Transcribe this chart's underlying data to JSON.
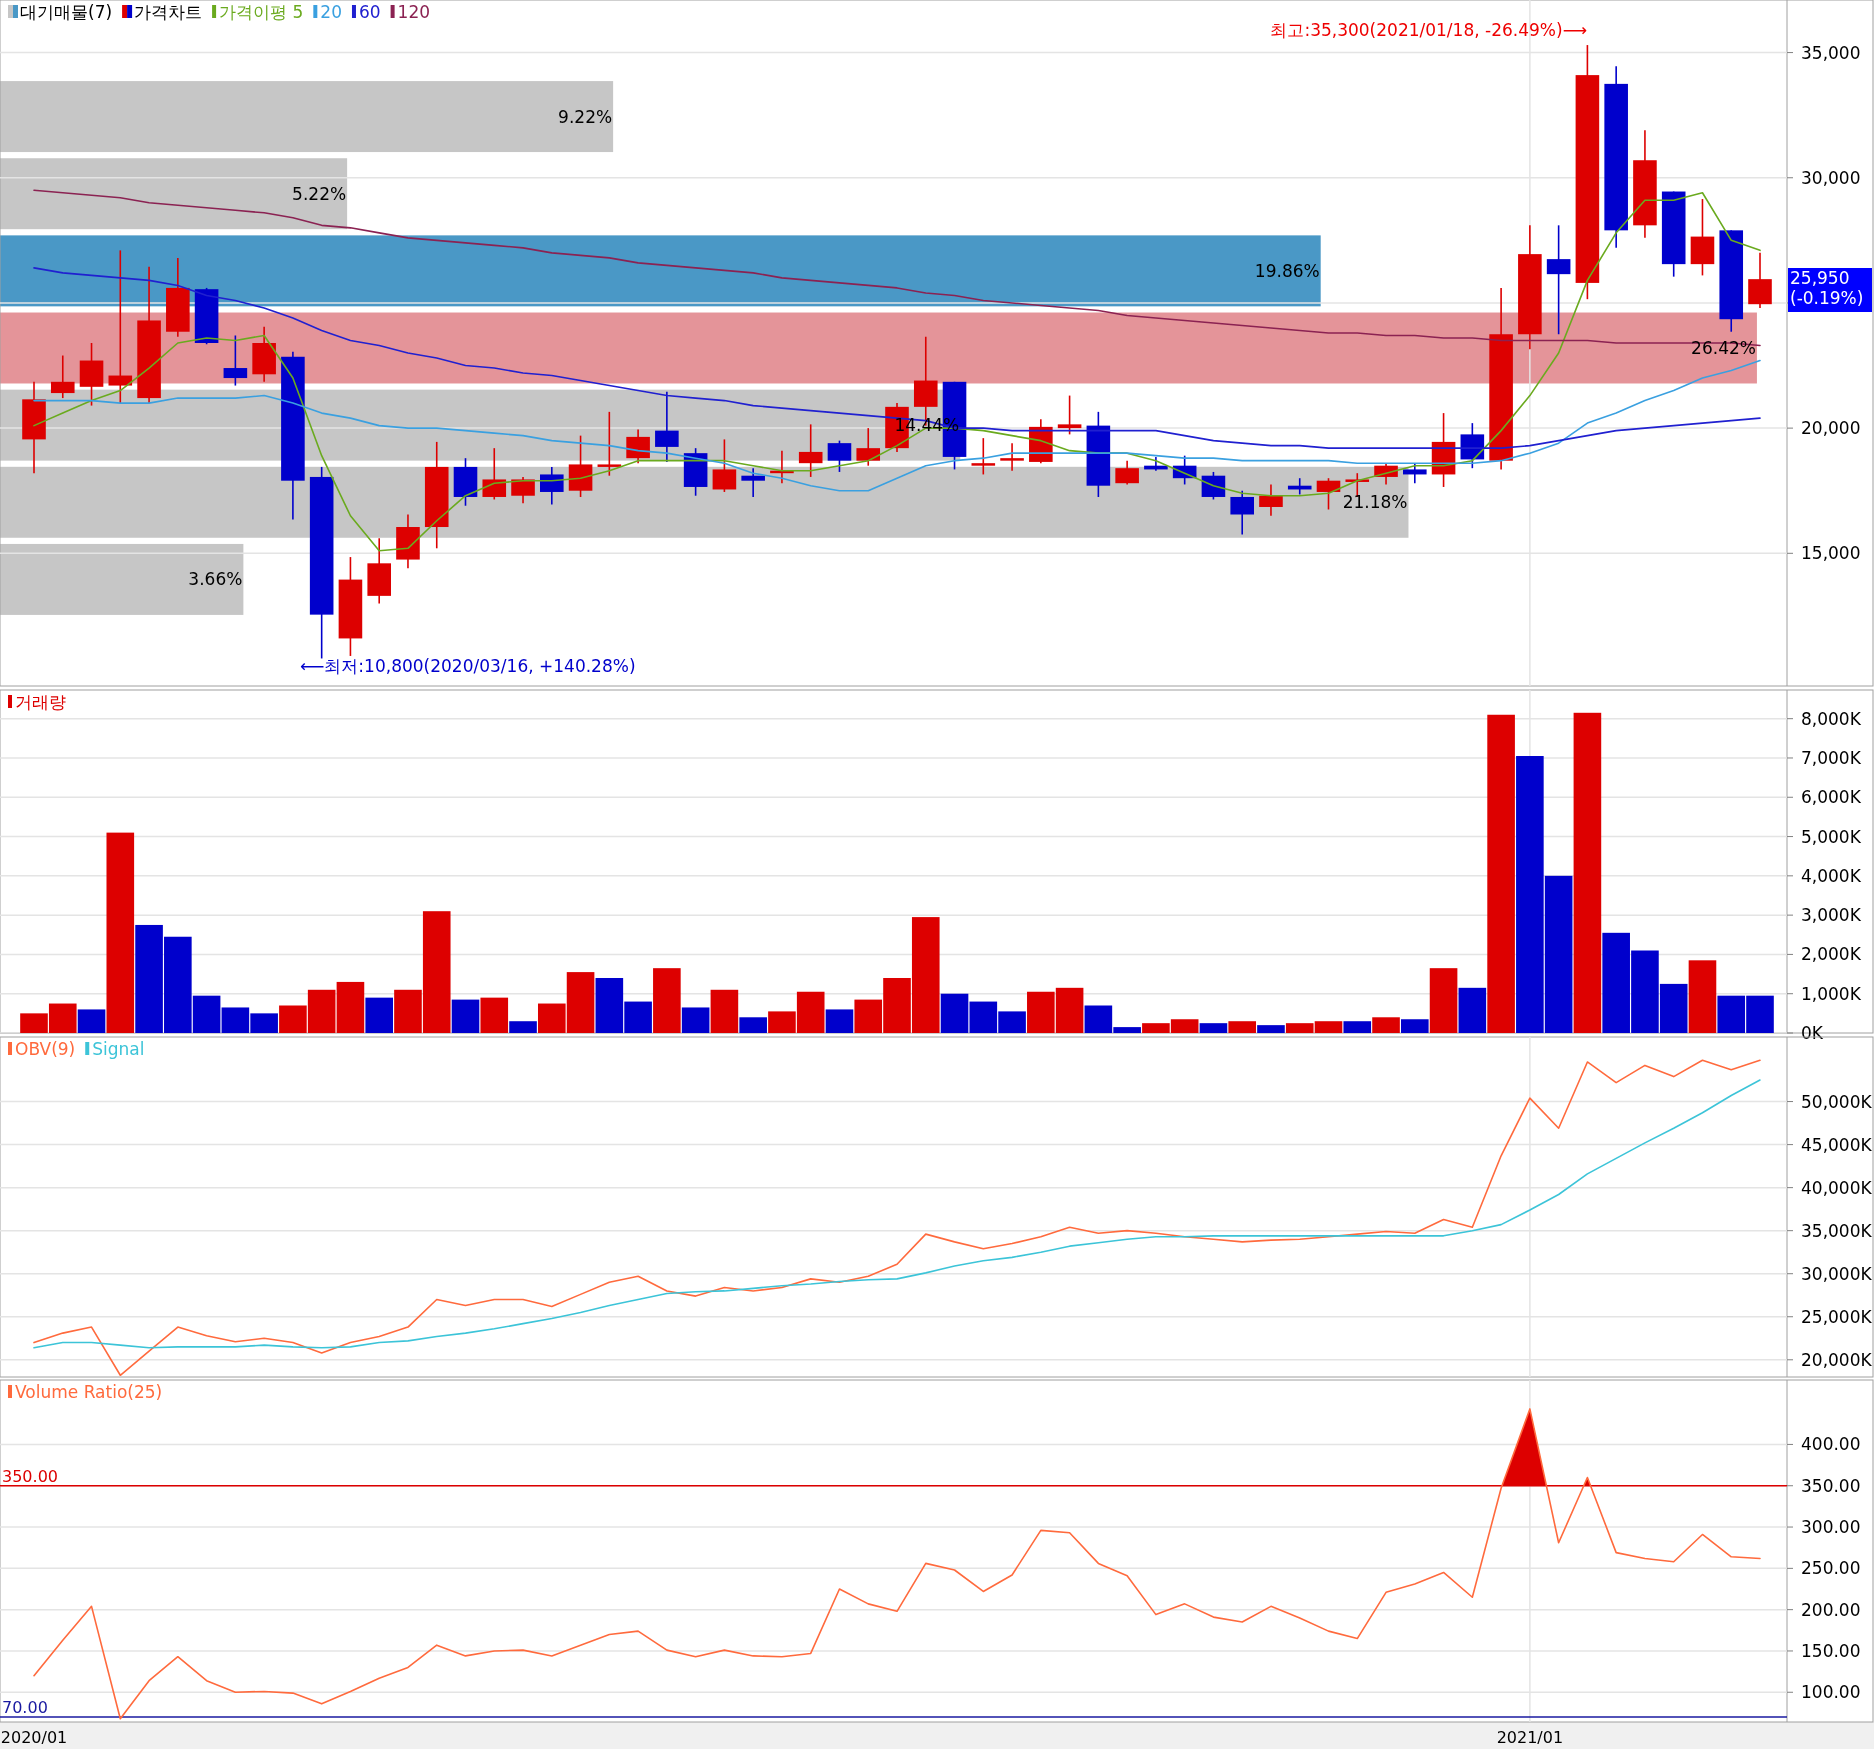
{
  "chart_data": [
    {
      "type": "bar",
      "orientation": "horizontal",
      "legend": "top left",
      "tick_labels": false,
      "categories": [
        null,
        null,
        null,
        null,
        null,
        null,
        null
      ],
      "series": [
        {
          "name": "대기매물(7)",
          "values": [
            9.22,
            5.22,
            19.86,
            26.42,
            14.44,
            21.18,
            3.66
          ],
          "value_labels": [
            "9.22%",
            "5.22%",
            "19.86%",
            "26.42%",
            "14.44%",
            "21.18%",
            "3.66%"
          ],
          "colors": [
            "#c6c6c6",
            "#c6c6c6",
            "#4a98c6",
            "#e49499",
            "#c6c6c6",
            "#c6c6c6",
            "#c6c6c6"
          ]
        }
      ]
    },
    {
      "type": "candlestick",
      "legend": "top left",
      "grid": true,
      "tick_labels": "y",
      "categories": [
        "2020/01",
        null,
        null,
        null,
        null,
        null,
        null,
        null,
        null,
        null,
        null,
        null,
        null,
        null,
        null,
        null,
        null,
        null,
        null,
        null,
        null,
        null,
        null,
        null,
        null,
        null,
        null,
        null,
        null,
        null,
        null,
        null,
        null,
        null,
        null,
        null,
        null,
        null,
        null,
        null,
        null,
        null,
        null,
        null,
        null,
        null,
        null,
        null,
        null,
        null,
        null,
        null,
        "2021/01",
        null,
        null,
        null,
        null,
        null,
        null,
        null,
        null
      ],
      "ylim": [
        9700,
        37100
      ],
      "yticks": [
        {
          "value": 15000,
          "label": "15,000"
        },
        {
          "value": 20000,
          "label": "20,000"
        },
        {
          "value": 25000,
          "label": null
        },
        {
          "value": 30000,
          "label": "30,000"
        },
        {
          "value": 35000,
          "label": "35,000"
        }
      ],
      "series": [
        {
          "name": "가격차트",
          "ohlc": [
            [
              19550,
              21850,
              18200,
              21150
            ],
            [
              21400,
              22900,
              21200,
              21850
            ],
            [
              21650,
              23400,
              20900,
              22700
            ],
            [
              21700,
              27100,
              21000,
              22100
            ],
            [
              21200,
              26450,
              21000,
              24300
            ],
            [
              23850,
              26800,
              23650,
              25600
            ],
            [
              25550,
              25600,
              23350,
              23400
            ],
            [
              22400,
              23700,
              21700,
              22000
            ],
            [
              22150,
              24050,
              21850,
              23400
            ],
            [
              22850,
              23050,
              16350,
              17900
            ],
            [
              18050,
              18450,
              10800,
              12550
            ],
            [
              11600,
              14850,
              10900,
              13950
            ],
            [
              13300,
              15600,
              13000,
              14600
            ],
            [
              14750,
              16550,
              14400,
              16050
            ],
            [
              16050,
              19450,
              15200,
              18450
            ],
            [
              18450,
              18800,
              16900,
              17250
            ],
            [
              17250,
              19200,
              17150,
              17950
            ],
            [
              17300,
              18050,
              17000,
              17950
            ],
            [
              18150,
              18450,
              16950,
              17450
            ],
            [
              17500,
              19700,
              17250,
              18550
            ],
            [
              18450,
              20650,
              18100,
              18550
            ],
            [
              18800,
              19950,
              18600,
              19650
            ],
            [
              19900,
              21450,
              18650,
              19250
            ],
            [
              19000,
              19200,
              17300,
              17650
            ],
            [
              17550,
              19550,
              17450,
              18350
            ],
            [
              18100,
              18400,
              17250,
              17900
            ],
            [
              18200,
              19100,
              17800,
              18300
            ],
            [
              18600,
              20150,
              18050,
              19050
            ],
            [
              19400,
              19500,
              18250,
              18700
            ],
            [
              18700,
              20000,
              18500,
              19200
            ],
            [
              19200,
              21000,
              19050,
              20850
            ],
            [
              20850,
              23650,
              20100,
              21900
            ],
            [
              21850,
              21850,
              18350,
              18850
            ],
            [
              18500,
              19600,
              18150,
              18600
            ],
            [
              18700,
              19400,
              18300,
              18800
            ],
            [
              18650,
              20350,
              18600,
              20050
            ],
            [
              20000,
              21300,
              19750,
              20150
            ],
            [
              20100,
              20650,
              17250,
              17700
            ],
            [
              17800,
              18700,
              17750,
              18400
            ],
            [
              18500,
              18850,
              18300,
              18350
            ],
            [
              18500,
              18900,
              17750,
              18000
            ],
            [
              18100,
              18250,
              17150,
              17250
            ],
            [
              17250,
              17500,
              15750,
              16550
            ],
            [
              16850,
              17750,
              16500,
              17300
            ],
            [
              17700,
              18000,
              17350,
              17550
            ],
            [
              17450,
              18000,
              16750,
              17900
            ],
            [
              17850,
              18200,
              17250,
              17950
            ],
            [
              18050,
              18600,
              17750,
              18500
            ],
            [
              18350,
              18600,
              17800,
              18150
            ],
            [
              18150,
              20600,
              17650,
              19450
            ],
            [
              19750,
              20200,
              18400,
              18750
            ],
            [
              18700,
              25600,
              18350,
              23750
            ],
            [
              23750,
              28100,
              23150,
              26950
            ],
            [
              26750,
              28100,
              23750,
              26150
            ],
            [
              25800,
              35300,
              25150,
              34100
            ],
            [
              33750,
              34450,
              27200,
              27900
            ],
            [
              28100,
              31900,
              27600,
              30700
            ],
            [
              29450,
              29450,
              26050,
              26550
            ],
            [
              26550,
              29150,
              26100,
              27650
            ],
            [
              27900,
              27900,
              23850,
              24350
            ],
            [
              24950,
              27000,
              24800,
              25950
            ]
          ],
          "colors": [
            "#dd0000",
            "#dd0000",
            "#dd0000",
            "#dd0000",
            "#dd0000",
            "#dd0000",
            "#0000cc",
            "#0000cc",
            "#dd0000",
            "#0000cc",
            "#0000cc",
            "#dd0000",
            "#dd0000",
            "#dd0000",
            "#dd0000",
            "#0000cc",
            "#dd0000",
            "#dd0000",
            "#0000cc",
            "#dd0000",
            "#dd0000",
            "#dd0000",
            "#0000cc",
            "#0000cc",
            "#dd0000",
            "#0000cc",
            "#dd0000",
            "#dd0000",
            "#0000cc",
            "#dd0000",
            "#dd0000",
            "#dd0000",
            "#0000cc",
            "#dd0000",
            "#dd0000",
            "#dd0000",
            "#dd0000",
            "#0000cc",
            "#dd0000",
            "#0000cc",
            "#0000cc",
            "#0000cc",
            "#0000cc",
            "#dd0000",
            "#0000cc",
            "#dd0000",
            "#dd0000",
            "#dd0000",
            "#0000cc",
            "#dd0000",
            "#0000cc",
            "#dd0000",
            "#dd0000",
            "#0000cc",
            "#dd0000",
            "#0000cc",
            "#dd0000",
            "#0000cc",
            "#dd0000",
            "#0000cc",
            "#dd0000"
          ]
        },
        {
          "type": "line",
          "name": "가격이평 5",
          "color": "#6aaa1e",
          "values": [
            20100,
            20600,
            21100,
            21500,
            22400,
            23400,
            23600,
            23500,
            23700,
            22000,
            18900,
            16500,
            15100,
            15200,
            16300,
            17300,
            17800,
            17900,
            17900,
            18000,
            18300,
            18700,
            18700,
            18700,
            18700,
            18500,
            18300,
            18300,
            18500,
            18700,
            19300,
            20000,
            20000,
            19900,
            19700,
            19500,
            19100,
            19000,
            19000,
            18700,
            18200,
            17700,
            17400,
            17300,
            17300,
            17400,
            17900,
            18200,
            18500,
            18500,
            18700,
            19900,
            21300,
            23000,
            25900,
            27800,
            29100,
            29100,
            29400,
            27500,
            27100
          ]
        },
        {
          "type": "line",
          "name": "20",
          "color": "#3aa0e0",
          "values": [
            21100,
            21100,
            21100,
            21000,
            21000,
            21200,
            21200,
            21200,
            21300,
            21000,
            20600,
            20400,
            20100,
            20000,
            20000,
            19900,
            19800,
            19700,
            19500,
            19400,
            19300,
            19100,
            19000,
            18800,
            18600,
            18200,
            18000,
            17700,
            17500,
            17500,
            18000,
            18500,
            18700,
            18800,
            19000,
            19000,
            19000,
            19000,
            19000,
            18900,
            18800,
            18800,
            18700,
            18700,
            18700,
            18700,
            18600,
            18600,
            18600,
            18600,
            18600,
            18700,
            19000,
            19400,
            20200,
            20600,
            21100,
            21500,
            22000,
            22300,
            22700
          ]
        },
        {
          "type": "line",
          "name": "60",
          "color": "#2020d0",
          "values": [
            26400,
            26200,
            26100,
            26000,
            25900,
            25700,
            25300,
            25100,
            24800,
            24400,
            23900,
            23500,
            23300,
            23000,
            22800,
            22500,
            22400,
            22200,
            22100,
            21900,
            21700,
            21500,
            21300,
            21200,
            21100,
            20900,
            20800,
            20700,
            20600,
            20500,
            20400,
            20300,
            20000,
            20000,
            19900,
            19900,
            19900,
            19900,
            19900,
            19900,
            19700,
            19500,
            19400,
            19300,
            19300,
            19200,
            19200,
            19200,
            19200,
            19200,
            19200,
            19200,
            19300,
            19500,
            19700,
            19900,
            20000,
            20100,
            20200,
            20300,
            20400
          ]
        },
        {
          "type": "line",
          "name": "120",
          "color": "#8b2252",
          "values": [
            29500,
            29400,
            29300,
            29200,
            29000,
            28900,
            28800,
            28700,
            28600,
            28400,
            28100,
            28000,
            27800,
            27600,
            27500,
            27400,
            27300,
            27200,
            27000,
            26900,
            26800,
            26600,
            26500,
            26400,
            26300,
            26200,
            26000,
            25900,
            25800,
            25700,
            25600,
            25400,
            25300,
            25100,
            25000,
            24900,
            24800,
            24700,
            24500,
            24400,
            24300,
            24200,
            24100,
            24000,
            23900,
            23800,
            23800,
            23700,
            23700,
            23600,
            23600,
            23500,
            23500,
            23500,
            23500,
            23400,
            23400,
            23400,
            23400,
            23400,
            23300
          ]
        }
      ],
      "annotations": [
        "최고:35,300(2021/01/18, -26.49%)⟶",
        "⟵최저:10,800(2020/03/16, +140.28%)",
        "25,950\n(-0.19%)"
      ]
    },
    {
      "type": "bar",
      "legend": "top left",
      "grid": true,
      "tick_labels": "y",
      "categories": [
        "2020/01",
        null,
        null,
        null,
        null,
        null,
        null,
        null,
        null,
        null,
        null,
        null,
        null,
        null,
        null,
        null,
        null,
        null,
        null,
        null,
        null,
        null,
        null,
        null,
        null,
        null,
        null,
        null,
        null,
        null,
        null,
        null,
        null,
        null,
        null,
        null,
        null,
        null,
        null,
        null,
        null,
        null,
        null,
        null,
        null,
        null,
        null,
        null,
        null,
        null,
        null,
        null,
        "2021/01",
        null,
        null,
        null,
        null,
        null,
        null,
        null,
        null
      ],
      "ylim": [
        0,
        8730
      ],
      "yticks": [
        {
          "value": 0,
          "label": "0K"
        },
        {
          "value": 1000,
          "label": "1,000K"
        },
        {
          "value": 2000,
          "label": "2,000K"
        },
        {
          "value": 3000,
          "label": "3,000K"
        },
        {
          "value": 4000,
          "label": "4,000K"
        },
        {
          "value": 5000,
          "label": "5,000K"
        },
        {
          "value": 6000,
          "label": "6,000K"
        },
        {
          "value": 7000,
          "label": "7,000K"
        },
        {
          "value": 8000,
          "label": "8,000K"
        }
      ],
      "series": [
        {
          "name": "거래량",
          "color": "#dd0000",
          "values": [
            500,
            750,
            600,
            5100,
            2750,
            2450,
            950,
            650,
            500,
            700,
            1100,
            1300,
            900,
            1100,
            3100,
            850,
            900,
            300,
            750,
            1550,
            1400,
            800,
            1650,
            650,
            1100,
            400,
            550,
            1050,
            600,
            850,
            1400,
            2950,
            1000,
            800,
            550,
            1050,
            1150,
            700,
            150,
            250,
            350,
            250,
            300,
            200,
            250,
            300,
            300,
            400,
            350,
            1650,
            1150,
            8100,
            7050,
            4000,
            8150,
            2550,
            2100,
            1250,
            1850,
            950,
            950
          ],
          "colors": [
            "#dd0000",
            "#dd0000",
            "#0000cc",
            "#dd0000",
            "#0000cc",
            "#0000cc",
            "#0000cc",
            "#0000cc",
            "#0000cc",
            "#dd0000",
            "#dd0000",
            "#dd0000",
            "#0000cc",
            "#dd0000",
            "#dd0000",
            "#0000cc",
            "#dd0000",
            "#0000cc",
            "#dd0000",
            "#dd0000",
            "#0000cc",
            "#0000cc",
            "#dd0000",
            "#0000cc",
            "#dd0000",
            "#0000cc",
            "#dd0000",
            "#dd0000",
            "#0000cc",
            "#dd0000",
            "#dd0000",
            "#dd0000",
            "#0000cc",
            "#0000cc",
            "#0000cc",
            "#dd0000",
            "#dd0000",
            "#0000cc",
            "#0000cc",
            "#dd0000",
            "#dd0000",
            "#0000cc",
            "#dd0000",
            "#0000cc",
            "#dd0000",
            "#dd0000",
            "#0000cc",
            "#dd0000",
            "#0000cc",
            "#dd0000",
            "#0000cc",
            "#dd0000",
            "#0000cc",
            "#0000cc",
            "#dd0000",
            "#0000cc",
            "#0000cc",
            "#0000cc",
            "#dd0000",
            "#0000cc",
            "#0000cc"
          ]
        }
      ]
    },
    {
      "type": "line",
      "legend": "top left",
      "grid": true,
      "tick_labels": "y",
      "categories": [
        "2020/01",
        null,
        null,
        null,
        null,
        null,
        null,
        null,
        null,
        null,
        null,
        null,
        null,
        null,
        null,
        null,
        null,
        null,
        null,
        null,
        null,
        null,
        null,
        null,
        null,
        null,
        null,
        null,
        null,
        null,
        null,
        null,
        null,
        null,
        null,
        null,
        null,
        null,
        null,
        null,
        null,
        null,
        null,
        null,
        null,
        null,
        null,
        null,
        null,
        null,
        null,
        null,
        "2021/01",
        null,
        null,
        null,
        null,
        null,
        null,
        null,
        null
      ],
      "ylim": [
        18000,
        57500
      ],
      "yticks": [
        {
          "value": 20000,
          "label": "20,000K"
        },
        {
          "value": 25000,
          "label": "25,000K"
        },
        {
          "value": 30000,
          "label": "30,000K"
        },
        {
          "value": 35000,
          "label": "35,000K"
        },
        {
          "value": 40000,
          "label": "40,000K"
        },
        {
          "value": 45000,
          "label": "45,000K"
        },
        {
          "value": 50000,
          "label": "50,000K"
        }
      ],
      "series": [
        {
          "name": "OBV(9)",
          "color": "#ff6a3d",
          "values": [
            22000,
            23100,
            23800,
            18200,
            21000,
            23800,
            22800,
            22100,
            22500,
            22000,
            20800,
            22000,
            22700,
            23800,
            27000,
            26300,
            27000,
            27000,
            26200,
            27600,
            29000,
            29700,
            28000,
            27400,
            28400,
            28000,
            28400,
            29400,
            29000,
            29700,
            31100,
            34600,
            33700,
            32900,
            33500,
            34300,
            35400,
            34700,
            35000,
            34700,
            34300,
            34000,
            33700,
            33900,
            34000,
            34300,
            34600,
            34900,
            34700,
            36300,
            35400,
            43700,
            50400,
            46900,
            54600,
            52200,
            54200,
            52900,
            54800,
            53700,
            54800
          ]
        },
        {
          "name": "Signal",
          "color": "#3cc4d8",
          "values": [
            21400,
            22000,
            22000,
            21700,
            21400,
            21500,
            21500,
            21500,
            21700,
            21500,
            21400,
            21500,
            22000,
            22200,
            22700,
            23100,
            23600,
            24200,
            24800,
            25500,
            26300,
            27000,
            27700,
            27900,
            28000,
            28300,
            28600,
            28800,
            29100,
            29300,
            29400,
            30100,
            30900,
            31500,
            31900,
            32500,
            33200,
            33600,
            34000,
            34300,
            34300,
            34400,
            34400,
            34400,
            34400,
            34400,
            34400,
            34400,
            34400,
            34400,
            35000,
            35700,
            37400,
            39200,
            41600,
            43400,
            45200,
            46900,
            48700,
            50700,
            52500
          ]
        }
      ]
    },
    {
      "type": "line",
      "legend": "top left",
      "grid": true,
      "categories": [
        "2020/01",
        null,
        null,
        null,
        null,
        null,
        null,
        null,
        null,
        null,
        null,
        null,
        null,
        null,
        null,
        null,
        null,
        null,
        null,
        null,
        null,
        null,
        null,
        null,
        null,
        null,
        null,
        null,
        null,
        null,
        null,
        null,
        null,
        null,
        null,
        null,
        null,
        null,
        null,
        null,
        null,
        null,
        null,
        null,
        null,
        null,
        null,
        null,
        null,
        null,
        null,
        null,
        "2021/01",
        null,
        null,
        null,
        null,
        null,
        null,
        null,
        null
      ],
      "ylim": [
        64,
        478
      ],
      "yticks": [
        {
          "value": 100,
          "label": "100.00"
        },
        {
          "value": 150,
          "label": "150.00"
        },
        {
          "value": 200,
          "label": "200.00"
        },
        {
          "value": 250,
          "label": "250.00"
        },
        {
          "value": 300,
          "label": "300.00"
        },
        {
          "value": 350,
          "label": "350.00"
        },
        {
          "value": 400,
          "label": "400.00"
        }
      ],
      "ref_lines": [
        {
          "axis": "y",
          "value": 350,
          "label": "350.00",
          "color": "#dd0000"
        },
        {
          "axis": "y",
          "value": 70,
          "label": "70.00",
          "color": "#1a1aa0"
        }
      ],
      "series": [
        {
          "name": "Volume Ratio(25)",
          "color": "#ff6a3d",
          "values": [
            120,
            163,
            204,
            68,
            114,
            143,
            114,
            100,
            101,
            99,
            86,
            101,
            117,
            130,
            157,
            144,
            150,
            151,
            144,
            157,
            170,
            174,
            151,
            143,
            151,
            144,
            143,
            147,
            225,
            207,
            198,
            256,
            248,
            222,
            242,
            296,
            293,
            256,
            241,
            194,
            207,
            191,
            185,
            204,
            190,
            174,
            165,
            221,
            231,
            245,
            215,
            347,
            443,
            281,
            360,
            269,
            262,
            258,
            291,
            264,
            262
          ]
        }
      ]
    }
  ]
}
